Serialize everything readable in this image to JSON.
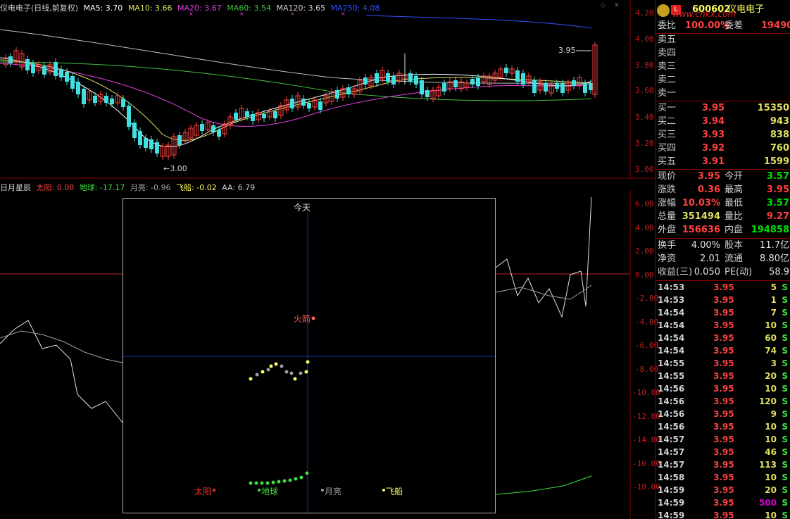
{
  "title_bar": {
    "stock": "仪电电子(日线,前复权)",
    "ma5": "MA5: 3.70",
    "ma10": "MA10: 3.66",
    "ma20": "MA20: 3.67",
    "ma60": "MA60: 3.54",
    "ma120": "MA120: 3.65",
    "ma250": "MA250: 4.08"
  },
  "indicator_bar": {
    "name": "日月星辰",
    "sun": "太阳: 0.00",
    "earth": "地球: -17.17",
    "moon": "月亮: -0.96",
    "ship": "飞船: -0.02",
    "aa": "AA: 6.79"
  },
  "price_axis": [
    "4.20",
    "4.00",
    "3.80",
    "3.60",
    "3.40",
    "3.20",
    "3.00"
  ],
  "indicator_axis": [
    "6.00",
    "4.00",
    "2.00",
    "0.00",
    "-2.00",
    "-4.00",
    "-6.00",
    "-8.00",
    "-10.00",
    "-12.00",
    "-14.00",
    "-16.00",
    "-18.00"
  ],
  "annotations": {
    "high": "3.95",
    "low": "←3.00"
  },
  "popup": {
    "today": "今天",
    "rocket": "火箭",
    "legend_sun": "太阳",
    "legend_earth": "地球",
    "legend_moon": "月亮",
    "legend_ship": "飞船"
  },
  "quote": {
    "code": "600602",
    "name": "仪电电子",
    "watermark": "www.cnkx.com",
    "ratio_label": "委比",
    "ratio_value": "100.00%",
    "diff_label": "委差",
    "diff_value": "19490",
    "sells": [
      "卖五",
      "卖四",
      "卖三",
      "卖二",
      "卖一"
    ],
    "buys": [
      {
        "label": "买一",
        "price": "3.95",
        "vol": "15350"
      },
      {
        "label": "买二",
        "price": "3.94",
        "vol": "943"
      },
      {
        "label": "买三",
        "price": "3.93",
        "vol": "838"
      },
      {
        "label": "买四",
        "price": "3.92",
        "vol": "760"
      },
      {
        "label": "买五",
        "price": "3.91",
        "vol": "1599"
      }
    ],
    "stats": [
      {
        "l1": "现价",
        "v1": "3.95",
        "c1": "#ff4040",
        "l2": "今开",
        "v2": "3.57",
        "c2": "#00e000"
      },
      {
        "l1": "涨跌",
        "v1": "0.36",
        "c1": "#ff4040",
        "l2": "最高",
        "v2": "3.95",
        "c2": "#ff4040"
      },
      {
        "l1": "涨幅",
        "v1": "10.03%",
        "c1": "#ff4040",
        "l2": "最低",
        "v2": "3.57",
        "c2": "#00e000"
      },
      {
        "l1": "总量",
        "v1": "351494",
        "c1": "#e0e060",
        "l2": "量比",
        "v2": "9.27",
        "c2": "#ff4040"
      },
      {
        "l1": "外盘",
        "v1": "156636",
        "c1": "#ff4040",
        "l2": "内盘",
        "v2": "194858",
        "c2": "#00e000"
      }
    ],
    "fin": [
      {
        "l1": "换手",
        "v1": "4.00%",
        "l2": "股本",
        "v2": "11.7亿"
      },
      {
        "l1": "净资",
        "v1": "2.01",
        "l2": "流通",
        "v2": "8.80亿"
      },
      {
        "l1": "收益(三)",
        "v1": "0.050",
        "l2": "PE(动)",
        "v2": "58.9"
      }
    ],
    "ticks": [
      {
        "t": "14:53",
        "p": "3.95",
        "v": "5",
        "s": "S"
      },
      {
        "t": "14:53",
        "p": "3.95",
        "v": "1",
        "s": "S"
      },
      {
        "t": "14:54",
        "p": "3.95",
        "v": "7",
        "s": "S"
      },
      {
        "t": "14:54",
        "p": "3.95",
        "v": "10",
        "s": "S"
      },
      {
        "t": "14:54",
        "p": "3.95",
        "v": "60",
        "s": "S"
      },
      {
        "t": "14:54",
        "p": "3.95",
        "v": "74",
        "s": "S"
      },
      {
        "t": "14:55",
        "p": "3.95",
        "v": "3",
        "s": "S"
      },
      {
        "t": "14:55",
        "p": "3.95",
        "v": "20",
        "s": "S"
      },
      {
        "t": "14:56",
        "p": "3.95",
        "v": "10",
        "s": "S"
      },
      {
        "t": "14:56",
        "p": "3.95",
        "v": "120",
        "s": "S"
      },
      {
        "t": "14:56",
        "p": "3.95",
        "v": "9",
        "s": "S"
      },
      {
        "t": "14:56",
        "p": "3.95",
        "v": "10",
        "s": "S"
      },
      {
        "t": "14:57",
        "p": "3.95",
        "v": "10",
        "s": "S"
      },
      {
        "t": "14:57",
        "p": "3.95",
        "v": "46",
        "s": "S"
      },
      {
        "t": "14:57",
        "p": "3.95",
        "v": "113",
        "s": "S"
      },
      {
        "t": "14:58",
        "p": "3.95",
        "v": "10",
        "s": "S"
      },
      {
        "t": "14:59",
        "p": "3.95",
        "v": "20",
        "s": "S"
      },
      {
        "t": "14:59",
        "p": "3.95",
        "v": "500",
        "s": "S",
        "vc": "#d000d0"
      },
      {
        "t": "14:59",
        "p": "3.95",
        "v": "10",
        "s": "S"
      }
    ]
  },
  "colors": {
    "ma5": "#ffffff",
    "ma10": "#e0e060",
    "ma20": "#e040e0",
    "ma60": "#40c040",
    "ma120": "#c0c0c0",
    "ma250": "#3050ff",
    "up": "#ff4040",
    "down": "#40e0e0"
  }
}
